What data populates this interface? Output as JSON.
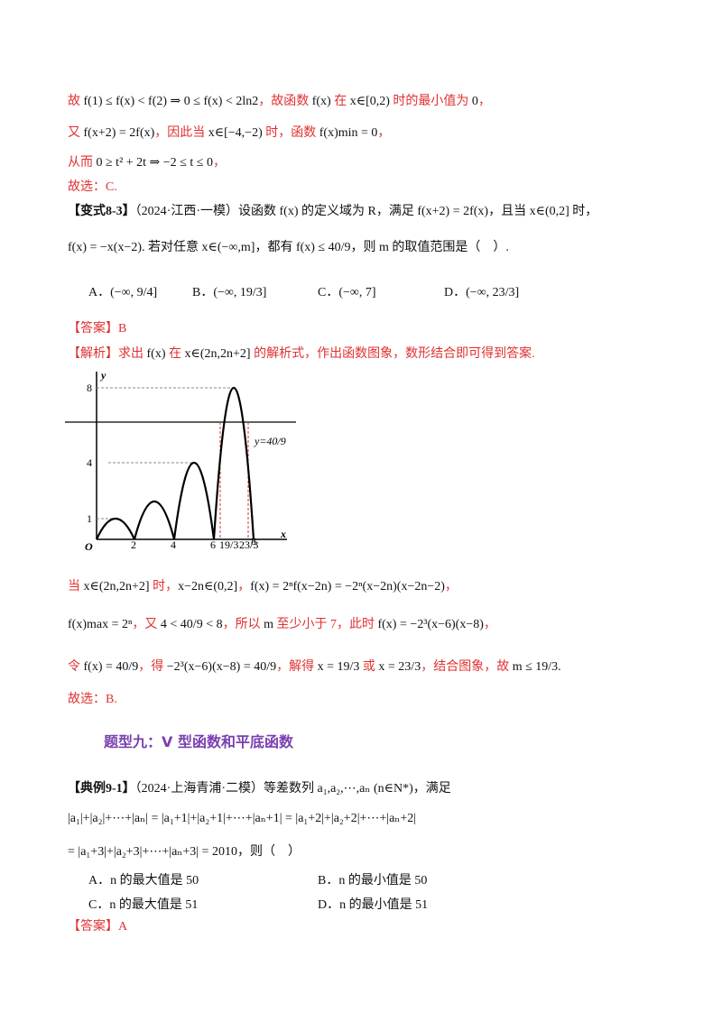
{
  "lines": [
    {
      "segments": [
        {
          "text": "故 ",
          "red": true
        },
        {
          "text": "f(1) ≤ f(x) < f(2) ⇒ 0 ≤ f(x) < 2ln2"
        },
        {
          "text": "，故函数 ",
          "red": true
        },
        {
          "text": "f(x)"
        },
        {
          "text": " 在 ",
          "red": true
        },
        {
          "text": "x∈[0,2)"
        },
        {
          "text": " 时的最小值为 ",
          "red": true
        },
        {
          "text": "0"
        },
        {
          "text": "，",
          "red": true
        }
      ]
    },
    {
      "segments": [
        {
          "text": "又 ",
          "red": true
        },
        {
          "text": "f(x+2) = 2f(x)"
        },
        {
          "text": "，因此当 ",
          "red": true
        },
        {
          "text": "x∈[−4,−2)"
        },
        {
          "text": " 时，函数 ",
          "red": true
        },
        {
          "text": "f(x)min = 0"
        },
        {
          "text": "，",
          "red": true
        }
      ]
    },
    {
      "segments": [
        {
          "text": "从而 ",
          "red": true
        },
        {
          "text": "0 ≥ t² + 2t ⇒ −2 ≤ t ≤ 0"
        },
        {
          "text": "，",
          "red": true
        }
      ]
    },
    {
      "segments": [
        {
          "text": "故选：C.",
          "red": true
        }
      ]
    },
    {
      "segments": [
        {
          "text": "【变式8-3】",
          "bold": true
        },
        {
          "text": "（2024·江西·一模）设函数 f(x) 的定义域为 R，满足 f(x+2) = 2f(x)，且当 x∈(0,2] 时，"
        }
      ]
    },
    {
      "segments": [
        {
          "text": "f(x) = −x(x−2). 若对任意 x∈(−∞,m]，都有 f(x) ≤ 40/9，则 m 的取值范围是（　）."
        }
      ]
    },
    {
      "segments": [
        {
          "text": "【答案】B",
          "red": true
        }
      ]
    },
    {
      "segments": [
        {
          "text": "【解析】求出 ",
          "red": true
        },
        {
          "text": "f(x)"
        },
        {
          "text": " 在 ",
          "red": true
        },
        {
          "text": "x∈(2n,2n+2]"
        },
        {
          "text": " 的解析式，作出函数图象，数形结合即可得到答案.",
          "red": true
        }
      ]
    },
    {
      "segments": [
        {
          "text": "当 ",
          "red": true
        },
        {
          "text": "x∈(2n,2n+2]"
        },
        {
          "text": " 时，",
          "red": true
        },
        {
          "text": "x−2n∈(0,2]"
        },
        {
          "text": "，",
          "red": true
        },
        {
          "text": "f(x) = 2ⁿf(x−2n) = −2ⁿ(x−2n)(x−2n−2)"
        },
        {
          "text": "，",
          "red": true
        }
      ]
    },
    {
      "segments": [
        {
          "text": "f(x)max = 2ⁿ"
        },
        {
          "text": "，又 ",
          "red": true
        },
        {
          "text": "4 < 40/9 < 8"
        },
        {
          "text": "，所以 ",
          "red": true
        },
        {
          "text": "m"
        },
        {
          "text": " 至少小于 7，此时 ",
          "red": true
        },
        {
          "text": "f(x) = −2³(x−6)(x−8)"
        },
        {
          "text": "，",
          "red": true
        }
      ]
    },
    {
      "segments": [
        {
          "text": "令 ",
          "red": true
        },
        {
          "text": "f(x) = 40/9"
        },
        {
          "text": "，得 ",
          "red": true
        },
        {
          "text": "−2³(x−6)(x−8) = 40/9"
        },
        {
          "text": "，解得 ",
          "red": true
        },
        {
          "text": "x = 19/3"
        },
        {
          "text": " 或 ",
          "red": true
        },
        {
          "text": "x = 23/3"
        },
        {
          "text": "，结合图象，故 ",
          "red": true
        },
        {
          "text": "m ≤ 19/3."
        }
      ]
    },
    {
      "segments": [
        {
          "text": "故选：B.",
          "red": true
        }
      ]
    },
    {
      "segments": [
        {
          "text": "【典例9-1】",
          "bold": true
        },
        {
          "text": "（2024·上海青浦·二模）等差数列 a₁,a₂,⋯,aₙ (n∈N*)，满足"
        }
      ]
    },
    {
      "segments": [
        {
          "text": "|a₁|+|a₂|+⋯+|aₙ| = |a₁+1|+|a₂+1|+⋯+|aₙ+1| = |a₁+2|+|a₂+2|+⋯+|aₙ+2|"
        }
      ]
    },
    {
      "segments": [
        {
          "text": "= |a₁+3|+|a₂+3|+⋯+|aₙ+3| = 2010，则（　）"
        }
      ]
    },
    {
      "segments": [
        {
          "text": "【答案】A",
          "red": true
        }
      ]
    }
  ],
  "options1": [
    "A．(−∞, 9/4]",
    "B．(−∞, 19/3]",
    "C．(−∞, 7]",
    "D．(−∞, 23/3]"
  ],
  "options2": [
    "A．n 的最大值是 50",
    "B．n 的最小值是 50",
    "C．n 的最大值是 51",
    "D．n 的最小值是 51"
  ],
  "heading": "题型九：V 型函数和平底函数",
  "figure": {
    "y_axis": "y",
    "x_axis": "x",
    "origin": "O",
    "y_ticks": [
      "8",
      "4",
      "1"
    ],
    "x_ticks": [
      "2",
      "4",
      "6",
      "19/3",
      "23/3",
      "8"
    ],
    "line_label": "y=40/9"
  }
}
